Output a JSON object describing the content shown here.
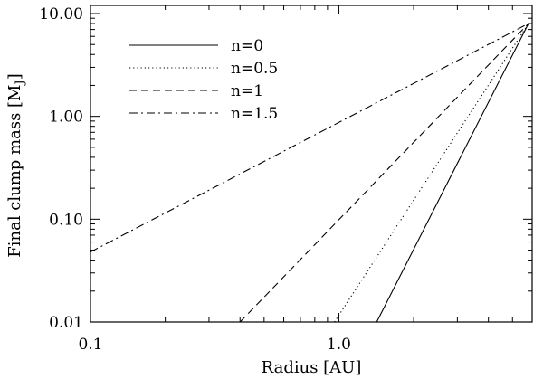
{
  "chart_data": {
    "type": "line",
    "xlabel": "Radius [AU]",
    "ylabel_main": "Final clump mass [M",
    "ylabel_sub": "J",
    "ylabel_close": "]",
    "xscale": "log",
    "yscale": "log",
    "xlim": [
      0.1,
      6.0
    ],
    "ylim": [
      0.01,
      12.0
    ],
    "grid": false,
    "legend_position": "top-left",
    "xticks": [
      {
        "value": 0.1,
        "label": "0.1"
      },
      {
        "value": 1.0,
        "label": "1.0"
      }
    ],
    "yticks": [
      {
        "value": 0.01,
        "label": "0.01"
      },
      {
        "value": 0.1,
        "label": "0.10"
      },
      {
        "value": 1.0,
        "label": "1.00"
      },
      {
        "value": 10.0,
        "label": "10.00"
      }
    ],
    "series": [
      {
        "name": "n=0",
        "dash": "solid",
        "x": [
          1.42,
          5.8
        ],
        "y": [
          0.01,
          8.0
        ]
      },
      {
        "name": "n=0.5",
        "dash": "dotted",
        "x": [
          0.96,
          5.8
        ],
        "y": [
          0.01,
          8.0
        ]
      },
      {
        "name": "n=1",
        "dash": "dashed",
        "x": [
          0.4,
          5.8
        ],
        "y": [
          0.01,
          8.0
        ]
      },
      {
        "name": "n=1.5",
        "dash": "dashdot",
        "x": [
          0.1,
          5.8
        ],
        "y": [
          0.048,
          8.0
        ]
      }
    ],
    "line_color": "#000000"
  }
}
